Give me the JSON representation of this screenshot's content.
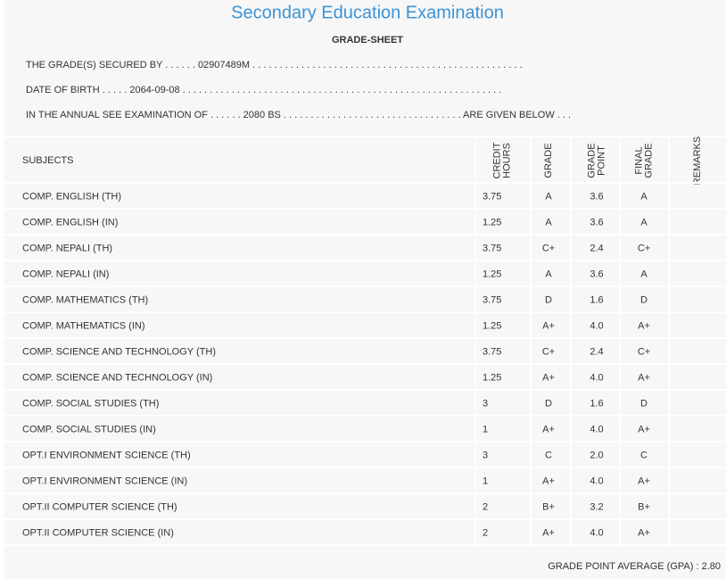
{
  "header": {
    "title": "Secondary Education Examination",
    "subtitle": "GRADE-SHEET",
    "lines": [
      "THE GRADE(S) SECURED BY . . . . . . 02907489M . . . . . . . . . . . . . . . . . . . . . . . . . . . . . . . . . . . . . . . . . . . . . . . . . .",
      "DATE OF BIRTH . . . . . 2064-09-08 . . . . . . . . . . . . . . . . . . . . . . . . . . . . . . . . . . . . . . . . . . . . . . . . . . . . . . . . . . .",
      "IN THE ANNUAL SEE EXAMINATION OF . . . . . . 2080 BS . . . . . . . . . . . . . . . . . . . . . . . . . . . . . . . . . ARE GIVEN BELOW . . ."
    ]
  },
  "table": {
    "columns": [
      [
        "SUBJECTS"
      ],
      [
        "CREDIT",
        "HOURS"
      ],
      [
        "GRADE"
      ],
      [
        "GRADE",
        "POINT"
      ],
      [
        "FINAL",
        "GRADE"
      ],
      [
        "REMARKS"
      ]
    ],
    "rows": [
      [
        "COMP. ENGLISH (TH)",
        "3.75",
        "A",
        "3.6",
        "A"
      ],
      [
        "COMP. ENGLISH (IN)",
        "1.25",
        "A",
        "3.6",
        "A"
      ],
      [
        "COMP. NEPALI (TH)",
        "3.75",
        "C+",
        "2.4",
        "C+"
      ],
      [
        "COMP. NEPALI (IN)",
        "1.25",
        "A",
        "3.6",
        "A"
      ],
      [
        "COMP. MATHEMATICS (TH)",
        "3.75",
        "D",
        "1.6",
        "D"
      ],
      [
        "COMP. MATHEMATICS (IN)",
        "1.25",
        "A+",
        "4.0",
        "A+"
      ],
      [
        "COMP. SCIENCE AND TECHNOLOGY (TH)",
        "3.75",
        "C+",
        "2.4",
        "C+"
      ],
      [
        "COMP. SCIENCE AND TECHNOLOGY (IN)",
        "1.25",
        "A+",
        "4.0",
        "A+"
      ],
      [
        "COMP. SOCIAL STUDIES (TH)",
        "3",
        "D",
        "1.6",
        "D"
      ],
      [
        "COMP. SOCIAL STUDIES (IN)",
        "1",
        "A+",
        "4.0",
        "A+"
      ],
      [
        "OPT.I ENVIRONMENT SCIENCE (TH)",
        "3",
        "C",
        "2.0",
        "C"
      ],
      [
        "OPT.I ENVIRONMENT SCIENCE (IN)",
        "1",
        "A+",
        "4.0",
        "A+"
      ],
      [
        "OPT.II COMPUTER SCIENCE (TH)",
        "2",
        "B+",
        "3.2",
        "B+"
      ],
      [
        "OPT.II COMPUTER SCIENCE (IN)",
        "2",
        "A+",
        "4.0",
        "A+"
      ]
    ]
  },
  "footer": {
    "gpa": "GRADE POINT AVERAGE (GPA) : 2.80"
  }
}
